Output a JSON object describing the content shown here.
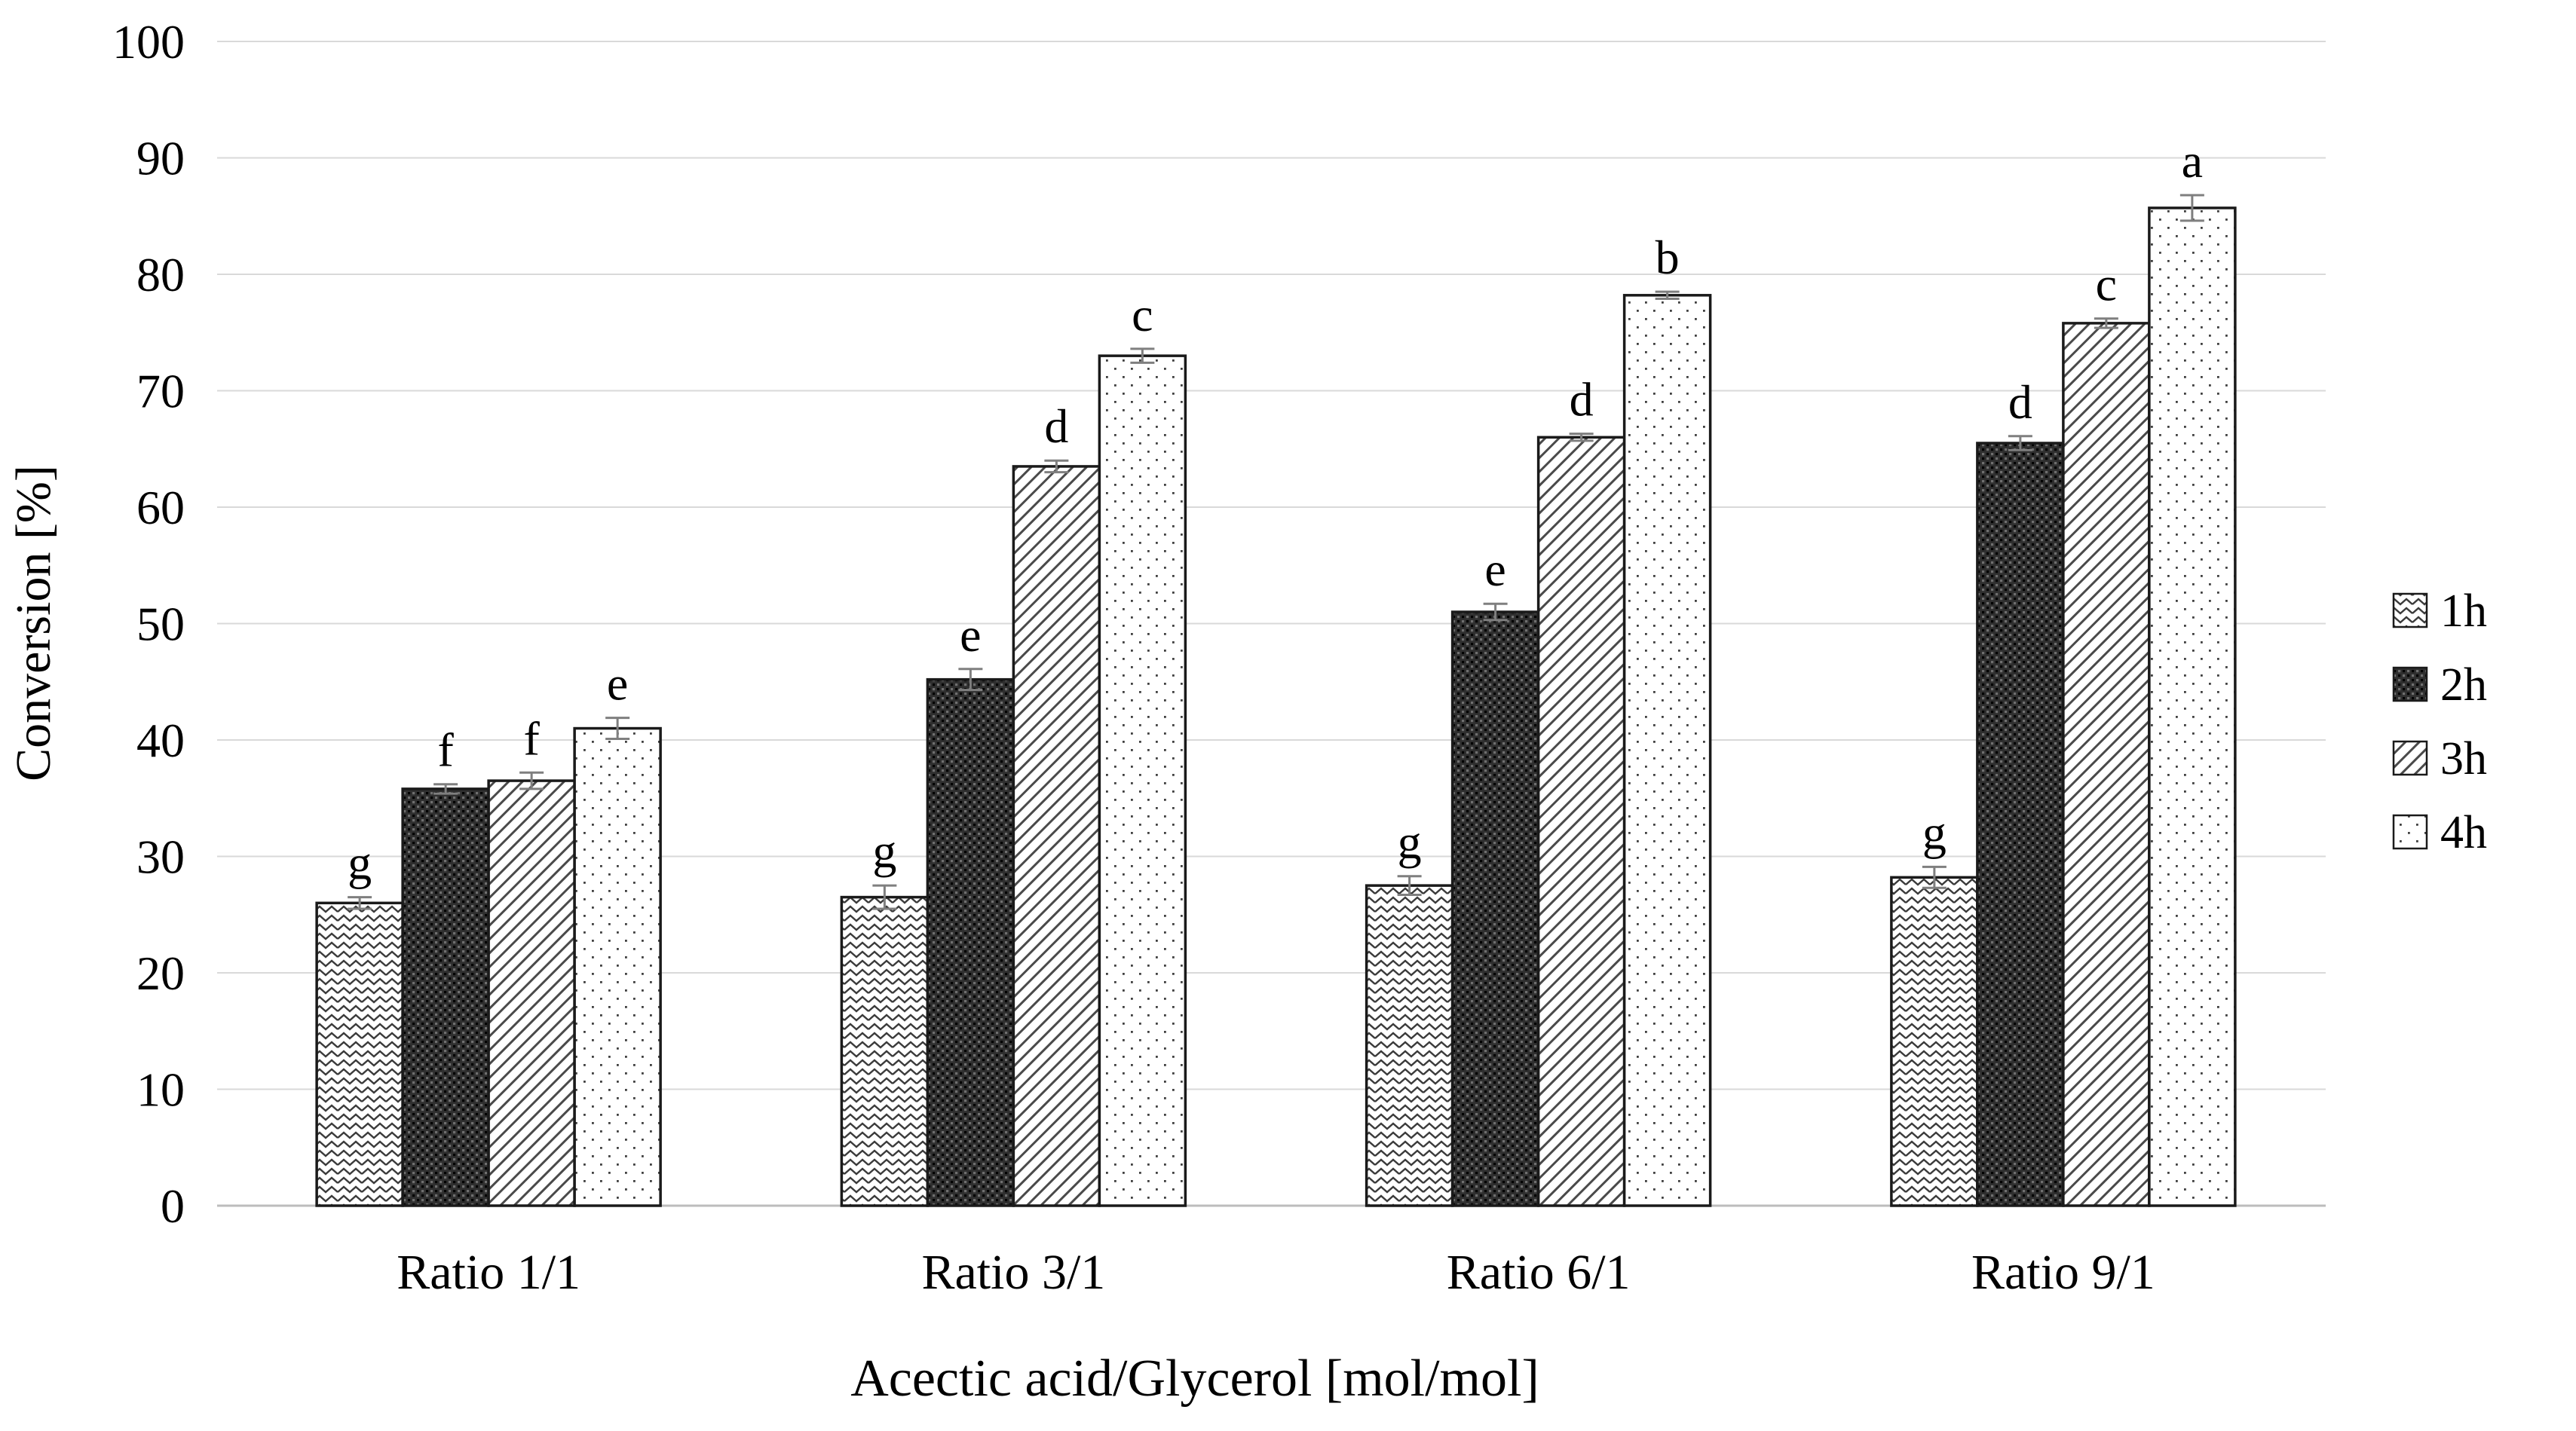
{
  "colors": {
    "background": "#ffffff",
    "ink": "#1a1a1a",
    "gridline": "#d9d9d9",
    "axis_line": "#bdbdbd",
    "error_bar": "#7f7f7f",
    "pattern_dark": "#333333",
    "pattern_mid": "#4a4a4a"
  },
  "chart_data": {
    "type": "bar",
    "title": "",
    "xlabel": "Acectic acid/Glycerol [mol/mol]",
    "ylabel": "Conversion [%]",
    "ylim": [
      0,
      100
    ],
    "ytick_step": 10,
    "yticks": [
      0,
      10,
      20,
      30,
      40,
      50,
      60,
      70,
      80,
      90,
      100
    ],
    "grid": "horizontal",
    "legend_position": "right",
    "legend_entries": [
      "1h",
      "2h",
      "3h",
      "4h"
    ],
    "categories": [
      "Ratio 1/1",
      "Ratio 3/1",
      "Ratio 6/1",
      "Ratio 9/1"
    ],
    "series": [
      {
        "name": "1h",
        "pattern": "zigzag",
        "values": [
          26.0,
          26.5,
          27.5,
          28.2
        ],
        "errors": [
          0.5,
          1.0,
          0.8,
          0.9
        ],
        "letters": [
          "g",
          "g",
          "g",
          "g"
        ]
      },
      {
        "name": "2h",
        "pattern": "dark-weave",
        "values": [
          35.8,
          45.2,
          51.0,
          65.5
        ],
        "errors": [
          0.4,
          0.9,
          0.7,
          0.6
        ],
        "letters": [
          "f",
          "e",
          "e",
          "d"
        ]
      },
      {
        "name": "3h",
        "pattern": "diagonal-lines",
        "values": [
          36.5,
          63.5,
          66.0,
          75.8
        ],
        "errors": [
          0.7,
          0.5,
          0.3,
          0.4
        ],
        "letters": [
          "f",
          "d",
          "d",
          "c"
        ]
      },
      {
        "name": "4h",
        "pattern": "dots",
        "values": [
          41.0,
          73.0,
          78.2,
          85.7
        ],
        "errors": [
          0.9,
          0.6,
          0.3,
          1.1
        ],
        "letters": [
          "e",
          "c",
          "b",
          "a"
        ]
      }
    ]
  }
}
